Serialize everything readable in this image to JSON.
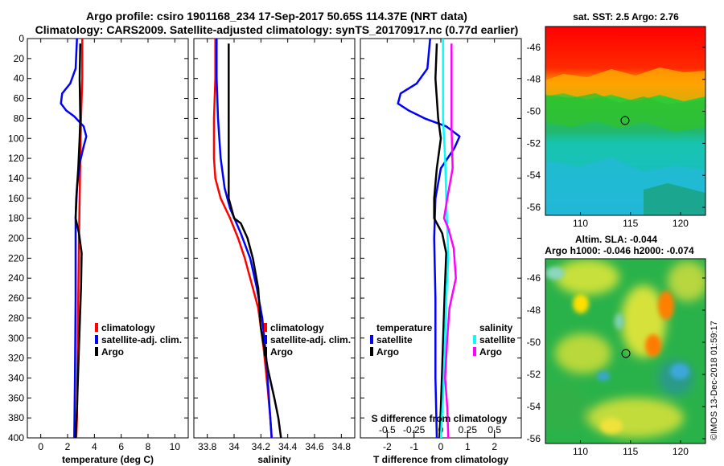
{
  "header": {
    "title_line1": "Argo profile: csiro 1901168_234 17-Sep-2017 50.65S 114.37E (NRT data)",
    "title_line2": "Climatology: CARS2009. Satellite-adjusted climatology: synTS_20170917.nc (0.77d earlier)"
  },
  "watermark": "©IMOS 13-Dec-2018 01:59:17",
  "colors": {
    "climatology": "#ff0000",
    "satellite": "#0000ff",
    "argo": "#000000",
    "sal_satellite": "#00ffff",
    "sal_argo": "#ff00ff"
  },
  "chart_data": [
    {
      "type": "line",
      "name": "temperature",
      "xlabel": "temperature (deg C)",
      "ylabel": "",
      "xlim": [
        -1,
        11
      ],
      "ylim": [
        400,
        0
      ],
      "xticks": [
        "0",
        "2",
        "4",
        "6",
        "8",
        "10"
      ],
      "xtick_values": [
        0,
        2,
        4,
        6,
        8,
        10
      ],
      "yticks": [
        "0",
        "20",
        "40",
        "60",
        "80",
        "100",
        "120",
        "140",
        "160",
        "180",
        "200",
        "220",
        "240",
        "260",
        "280",
        "300",
        "320",
        "340",
        "360",
        "380",
        "400"
      ],
      "legend": [
        "climatology",
        "satellite-adj. clim.",
        "Argo"
      ],
      "series": [
        {
          "name": "climatology",
          "color": "#ff0000",
          "points": [
            [
              3.1,
              0
            ],
            [
              3.1,
              40
            ],
            [
              3.0,
              80
            ],
            [
              2.95,
              120
            ],
            [
              2.9,
              160
            ],
            [
              2.85,
              200
            ],
            [
              2.8,
              260
            ],
            [
              2.75,
              320
            ],
            [
              2.7,
              380
            ],
            [
              2.65,
              400
            ]
          ]
        },
        {
          "name": "satellite-adj. clim.",
          "color": "#0000ff",
          "points": [
            [
              2.7,
              0
            ],
            [
              2.6,
              30
            ],
            [
              2.2,
              45
            ],
            [
              1.6,
              55
            ],
            [
              1.5,
              65
            ],
            [
              1.9,
              72
            ],
            [
              2.5,
              78
            ],
            [
              3.2,
              88
            ],
            [
              3.4,
              98
            ],
            [
              3.2,
              108
            ],
            [
              2.9,
              125
            ],
            [
              2.7,
              150
            ],
            [
              2.6,
              180
            ],
            [
              2.6,
              260
            ],
            [
              2.55,
              340
            ],
            [
              2.5,
              400
            ]
          ]
        },
        {
          "name": "Argo",
          "color": "#000000",
          "points": [
            [
              2.95,
              5
            ],
            [
              2.9,
              40
            ],
            [
              2.95,
              80
            ],
            [
              2.9,
              100
            ],
            [
              2.8,
              130
            ],
            [
              2.65,
              160
            ],
            [
              2.6,
              180
            ],
            [
              2.85,
              195
            ],
            [
              3.05,
              215
            ],
            [
              3.0,
              250
            ],
            [
              2.9,
              290
            ],
            [
              2.8,
              330
            ],
            [
              2.7,
              370
            ],
            [
              2.6,
              400
            ]
          ]
        }
      ]
    },
    {
      "type": "line",
      "name": "salinity",
      "xlabel": "salinity",
      "xlim": [
        33.7,
        34.9
      ],
      "ylim": [
        400,
        0
      ],
      "xticks": [
        "33.8",
        "34",
        "34.2",
        "34.4",
        "34.6",
        "34.8"
      ],
      "xtick_values": [
        33.8,
        34.0,
        34.2,
        34.4,
        34.6,
        34.8
      ],
      "legend": [
        "climatology",
        "satellite-adj. clim.",
        "Argo"
      ],
      "series": [
        {
          "name": "climatology",
          "color": "#ff0000",
          "points": [
            [
              33.86,
              0
            ],
            [
              33.86,
              40
            ],
            [
              33.85,
              80
            ],
            [
              33.85,
              120
            ],
            [
              33.86,
              140
            ],
            [
              33.9,
              160
            ],
            [
              33.97,
              180
            ],
            [
              34.03,
              200
            ],
            [
              34.08,
              220
            ],
            [
              34.12,
              240
            ],
            [
              34.18,
              270
            ],
            [
              34.22,
              310
            ],
            [
              34.25,
              350
            ],
            [
              34.27,
              380
            ],
            [
              34.28,
              400
            ]
          ]
        },
        {
          "name": "satellite-adj. clim.",
          "color": "#0000ff",
          "points": [
            [
              33.87,
              0
            ],
            [
              33.87,
              40
            ],
            [
              33.88,
              80
            ],
            [
              33.9,
              120
            ],
            [
              33.93,
              150
            ],
            [
              33.97,
              170
            ],
            [
              34.05,
              195
            ],
            [
              34.12,
              220
            ],
            [
              34.17,
              250
            ],
            [
              34.21,
              280
            ],
            [
              34.24,
              320
            ],
            [
              34.26,
              360
            ],
            [
              34.28,
              400
            ]
          ]
        },
        {
          "name": "Argo",
          "color": "#000000",
          "points": [
            [
              33.96,
              5
            ],
            [
              33.96,
              50
            ],
            [
              33.96,
              90
            ],
            [
              33.96,
              130
            ],
            [
              33.96,
              160
            ],
            [
              34.0,
              180
            ],
            [
              34.05,
              185
            ],
            [
              34.1,
              200
            ],
            [
              34.14,
              220
            ],
            [
              34.18,
              250
            ],
            [
              34.2,
              290
            ],
            [
              34.25,
              330
            ],
            [
              34.3,
              360
            ],
            [
              34.33,
              380
            ],
            [
              34.35,
              400
            ]
          ]
        }
      ]
    },
    {
      "type": "line",
      "name": "difference",
      "xlabel": "T difference from climatology",
      "xlabel_top": "S difference from climatology",
      "xlim": [
        -3,
        3
      ],
      "ylim": [
        400,
        0
      ],
      "xticks": [
        "-2",
        "-1",
        "0",
        "1",
        "2"
      ],
      "xtick_values": [
        -2,
        -1,
        0,
        1,
        2
      ],
      "xticks_top": [
        "-0.5",
        "-0.25",
        "0",
        "0.25",
        "0.5"
      ],
      "xtick_top_values": [
        -0.5,
        -0.25,
        0,
        0.25,
        0.5
      ],
      "legend_temperature": {
        "title": "temperature",
        "entries": [
          "satellite",
          "Argo"
        ]
      },
      "legend_salinity": {
        "title": "salinity",
        "entries": [
          "satellite",
          "Argo"
        ]
      },
      "series": [
        {
          "name": "T satellite",
          "color": "#0000ff",
          "points": [
            [
              -0.4,
              0
            ],
            [
              -0.5,
              30
            ],
            [
              -0.9,
              45
            ],
            [
              -1.5,
              55
            ],
            [
              -1.6,
              65
            ],
            [
              -1.2,
              72
            ],
            [
              -0.6,
              80
            ],
            [
              0.2,
              88
            ],
            [
              0.7,
              98
            ],
            [
              0.5,
              110
            ],
            [
              0.0,
              130
            ],
            [
              -0.2,
              160
            ],
            [
              -0.25,
              200
            ],
            [
              -0.2,
              260
            ],
            [
              -0.2,
              340
            ],
            [
              -0.15,
              400
            ]
          ]
        },
        {
          "name": "T Argo",
          "color": "#000000",
          "points": [
            [
              -0.15,
              5
            ],
            [
              -0.2,
              40
            ],
            [
              -0.1,
              80
            ],
            [
              0.0,
              100
            ],
            [
              -0.15,
              130
            ],
            [
              -0.25,
              160
            ],
            [
              -0.25,
              180
            ],
            [
              0.05,
              195
            ],
            [
              0.2,
              215
            ],
            [
              0.15,
              250
            ],
            [
              0.1,
              290
            ],
            [
              0.05,
              330
            ],
            [
              0.0,
              370
            ],
            [
              -0.05,
              400
            ]
          ]
        },
        {
          "name": "S satellite",
          "color": "#00ffff",
          "points": [
            [
              0.02,
              0
            ],
            [
              0.02,
              80
            ],
            [
              0.04,
              120
            ],
            [
              0.05,
              160
            ],
            [
              0.06,
              190
            ],
            [
              0.07,
              220
            ],
            [
              0.05,
              260
            ],
            [
              0.04,
              300
            ],
            [
              0.02,
              360
            ],
            [
              0.0,
              400
            ]
          ]
        },
        {
          "name": "S Argo",
          "color": "#ff00ff",
          "points": [
            [
              0.1,
              5
            ],
            [
              0.1,
              90
            ],
            [
              0.11,
              130
            ],
            [
              0.06,
              160
            ],
            [
              0.03,
              180
            ],
            [
              0.07,
              190
            ],
            [
              0.12,
              210
            ],
            [
              0.14,
              240
            ],
            [
              0.08,
              270
            ],
            [
              0.06,
              300
            ],
            [
              0.04,
              340
            ],
            [
              0.06,
              370
            ],
            [
              0.07,
              400
            ]
          ]
        }
      ]
    },
    {
      "type": "heatmap",
      "name": "sst_map",
      "title": "sat. SST: 2.5 Argo: 2.76",
      "xlim": [
        106.5,
        122.5
      ],
      "ylim": [
        -56.5,
        -44.7
      ],
      "xticks": [
        "110",
        "115",
        "120"
      ],
      "xtick_values": [
        110,
        115,
        120
      ],
      "yticks": [
        "-46",
        "-48",
        "-50",
        "-52",
        "-54",
        "-56"
      ],
      "ytick_values": [
        -46,
        -48,
        -50,
        -52,
        -54,
        -56
      ],
      "marker": {
        "lon": 114.37,
        "lat": -50.65
      }
    },
    {
      "type": "heatmap",
      "name": "sla_map",
      "title": "Altim. SLA: -0.044",
      "subtitle": "Argo h1000: -0.046 h2000: -0.074",
      "xlim": [
        106.5,
        122.5
      ],
      "ylim": [
        -56.3,
        -44.8
      ],
      "xticks": [
        "110",
        "115",
        "120"
      ],
      "xtick_values": [
        110,
        115,
        120
      ],
      "yticks": [
        "-46",
        "-48",
        "-50",
        "-52",
        "-54",
        "-56"
      ],
      "ytick_values": [
        -46,
        -48,
        -50,
        -52,
        -54,
        -56
      ],
      "marker": {
        "lon": 114.37,
        "lat": -50.65
      }
    }
  ]
}
